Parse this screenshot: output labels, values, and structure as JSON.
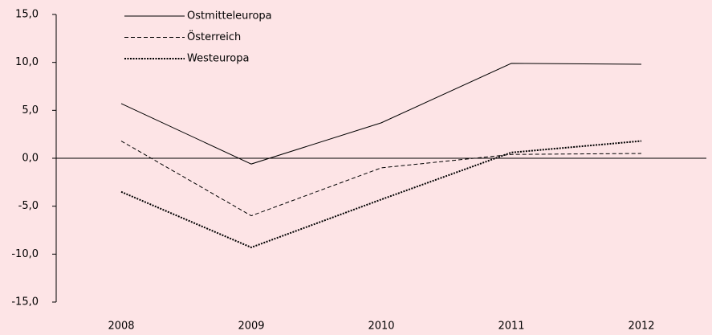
{
  "chart_data": {
    "type": "line",
    "categories": [
      "2008",
      "2009",
      "2010",
      "2011",
      "2012"
    ],
    "series": [
      {
        "name": "Ostmitteleuropa",
        "color": "#000000",
        "line_style": "solid",
        "values": [
          5.7,
          -0.6,
          3.7,
          9.9,
          9.8
        ]
      },
      {
        "name": "Österreich",
        "color": "#000000",
        "line_style": "dashed",
        "values": [
          1.8,
          -6.0,
          -1.0,
          0.4,
          0.5
        ]
      },
      {
        "name": "Westeuropa",
        "color": "#000000",
        "line_style": "dotted",
        "values": [
          -3.5,
          -9.3,
          -4.3,
          0.6,
          1.8
        ]
      }
    ],
    "ylim": [
      -15,
      15
    ],
    "yticks": [
      {
        "value": -15,
        "label": "-15,0"
      },
      {
        "value": -10,
        "label": "-10,0"
      },
      {
        "value": -5,
        "label": "-5,0"
      },
      {
        "value": 0,
        "label": "0,0"
      },
      {
        "value": 5,
        "label": "5,0"
      },
      {
        "value": 10,
        "label": "10,0"
      },
      {
        "value": 15,
        "label": "15,0"
      }
    ],
    "grid": false,
    "legend": "top-left"
  }
}
